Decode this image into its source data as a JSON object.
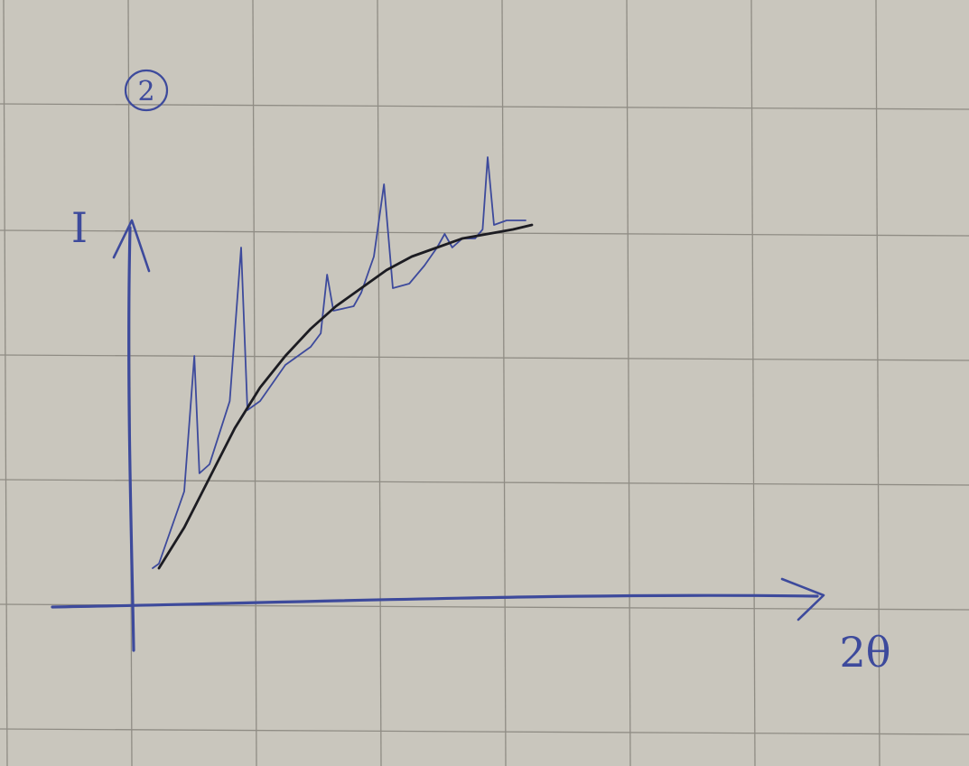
{
  "panel_number": "2",
  "chart_data": {
    "type": "line",
    "xlabel": "2θ",
    "ylabel": "I",
    "grid": true,
    "colors": {
      "paper": "#c9c6bd",
      "grid": "#8f8c84",
      "pen_blue": "#3d4a9c",
      "pen_black": "#1c1c22"
    },
    "series": [
      {
        "role": "measured pattern",
        "color": "#3d4a9c",
        "points": [
          [
            0.15,
            0.05
          ],
          [
            0.2,
            0.06
          ],
          [
            0.3,
            0.14
          ],
          [
            0.4,
            0.22
          ],
          [
            0.48,
            0.52
          ],
          [
            0.52,
            0.26
          ],
          [
            0.6,
            0.28
          ],
          [
            0.76,
            0.42
          ],
          [
            0.85,
            0.76
          ],
          [
            0.9,
            0.4
          ],
          [
            1.0,
            0.42
          ],
          [
            1.2,
            0.5
          ],
          [
            1.4,
            0.54
          ],
          [
            1.48,
            0.57
          ],
          [
            1.53,
            0.7
          ],
          [
            1.58,
            0.62
          ],
          [
            1.74,
            0.63
          ],
          [
            1.8,
            0.66
          ],
          [
            1.9,
            0.74
          ],
          [
            1.98,
            0.9
          ],
          [
            2.05,
            0.67
          ],
          [
            2.18,
            0.68
          ],
          [
            2.3,
            0.72
          ],
          [
            2.4,
            0.76
          ],
          [
            2.46,
            0.79
          ],
          [
            2.52,
            0.76
          ],
          [
            2.6,
            0.78
          ],
          [
            2.7,
            0.78
          ],
          [
            2.76,
            0.8
          ],
          [
            2.8,
            0.96
          ],
          [
            2.85,
            0.81
          ],
          [
            2.95,
            0.82
          ],
          [
            3.1,
            0.82
          ]
        ]
      },
      {
        "role": "background curve",
        "color": "#1c1c22",
        "points": [
          [
            0.2,
            0.05
          ],
          [
            0.4,
            0.14
          ],
          [
            0.6,
            0.25
          ],
          [
            0.8,
            0.36
          ],
          [
            1.0,
            0.45
          ],
          [
            1.2,
            0.52
          ],
          [
            1.4,
            0.58
          ],
          [
            1.6,
            0.63
          ],
          [
            1.8,
            0.67
          ],
          [
            2.0,
            0.71
          ],
          [
            2.2,
            0.74
          ],
          [
            2.4,
            0.76
          ],
          [
            2.6,
            0.78
          ],
          [
            2.8,
            0.79
          ],
          [
            3.0,
            0.8
          ],
          [
            3.15,
            0.81
          ]
        ]
      }
    ]
  }
}
